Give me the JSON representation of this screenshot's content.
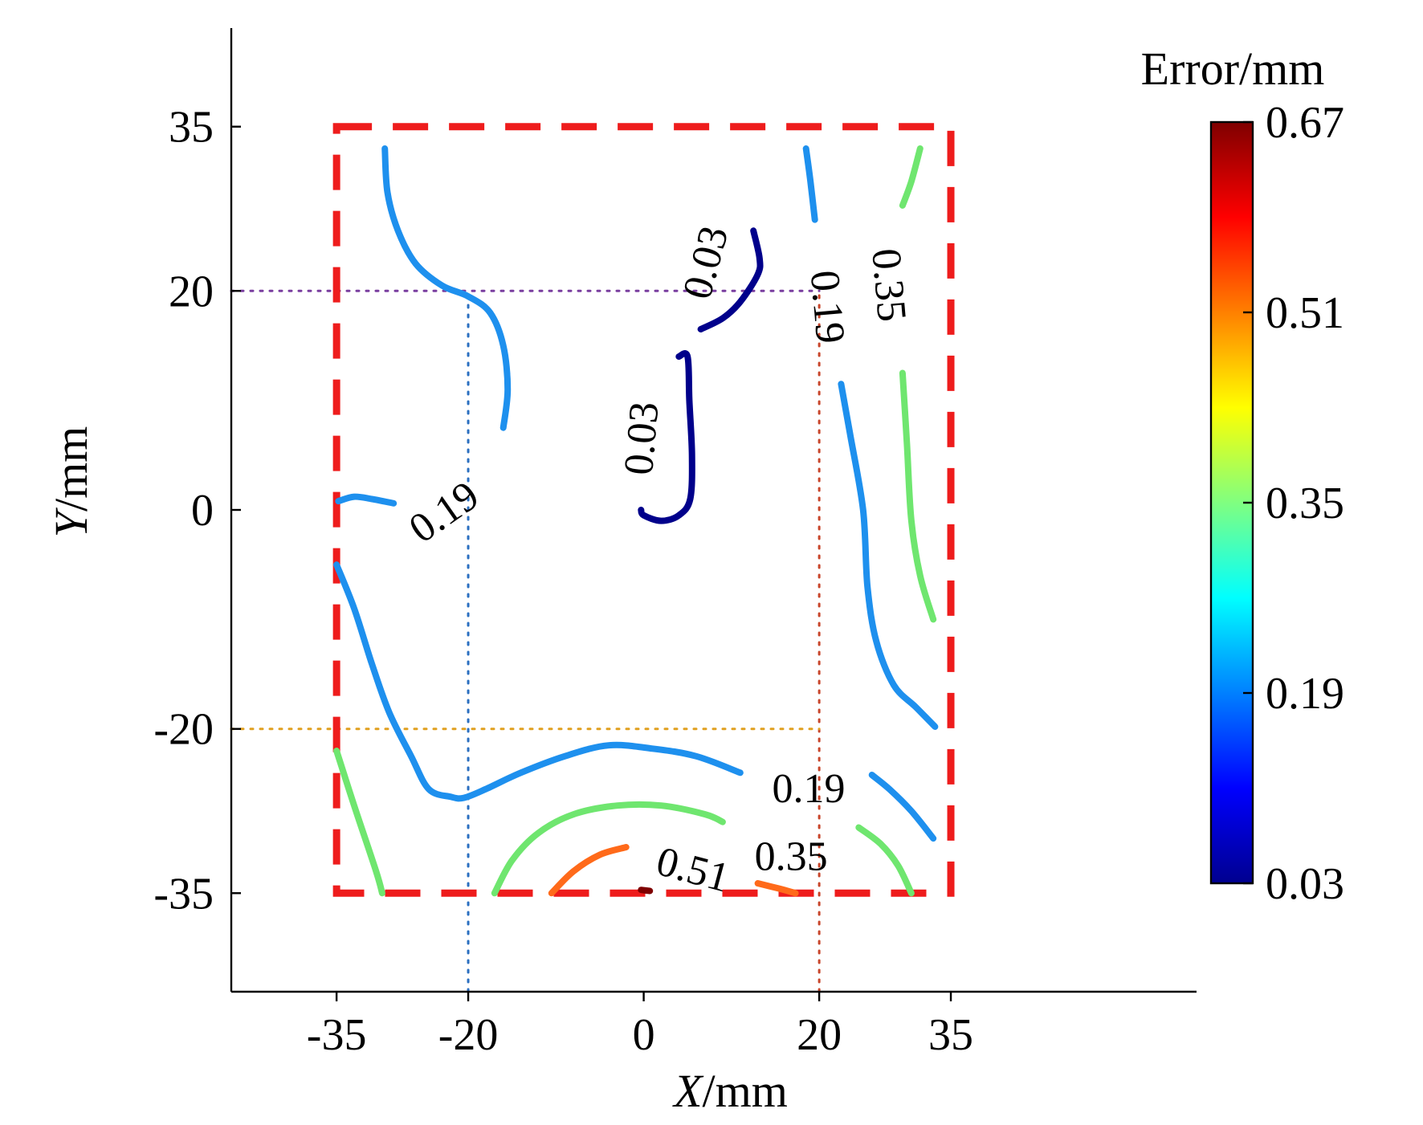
{
  "chart_data": {
    "type": "contour",
    "xlabel": {
      "italic": "X",
      "rest": "/mm"
    },
    "ylabel": {
      "italic": "Y",
      "rest": "/mm"
    },
    "xlim": [
      -47,
      63
    ],
    "ylim": [
      -44,
      44
    ],
    "xticks": [
      -35,
      -20,
      0,
      20,
      35
    ],
    "yticks": [
      35,
      20,
      0,
      -20,
      -35
    ],
    "colorbar": {
      "title": "Error/mm",
      "min": 0.03,
      "max": 0.67,
      "ticks": [
        "0.67",
        "0.51",
        "0.35",
        "0.19",
        "0.03"
      ],
      "colormap": [
        "#7f0000",
        "#ff0000",
        "#ff8000",
        "#ffff00",
        "#80ff80",
        "#00ffff",
        "#0080ff",
        "#0000ff",
        "#00008f"
      ]
    },
    "measurement_region": {
      "x": [
        -35,
        35
      ],
      "y": [
        -35,
        35
      ],
      "color": "#ee1c1c"
    },
    "guide_lines": [
      {
        "orientation": "vertical",
        "value": -20,
        "color": "#2a6fc0"
      },
      {
        "orientation": "vertical",
        "value": 20,
        "color": "#c8452a"
      },
      {
        "orientation": "horizontal",
        "value": 20,
        "color": "#7a3fa0"
      },
      {
        "orientation": "horizontal",
        "value": -20,
        "color": "#e0a020"
      }
    ],
    "contours": [
      {
        "level": 0.19,
        "color": "#1e90ee",
        "points": [
          [
            -29.5,
            33
          ],
          [
            -29.2,
            29
          ],
          [
            -28,
            25.5
          ],
          [
            -26,
            22.5
          ],
          [
            -23,
            20.5
          ],
          [
            -20,
            19.5
          ],
          [
            -17.5,
            18
          ],
          [
            -16,
            15
          ],
          [
            -15.5,
            11
          ],
          [
            -16,
            7.5
          ]
        ]
      },
      {
        "level": 0.19,
        "color": "#1e90ee",
        "points": [
          [
            -34.8,
            0.8
          ],
          [
            -33,
            1.2
          ],
          [
            -31,
            1
          ],
          [
            -28.5,
            0.6
          ]
        ]
      },
      {
        "level": 0.19,
        "color": "#1e90ee",
        "points": [
          [
            -35,
            -5
          ],
          [
            -33,
            -9
          ],
          [
            -31,
            -14
          ],
          [
            -29,
            -18.5
          ],
          [
            -26.5,
            -22.5
          ],
          [
            -24.5,
            -25.5
          ],
          [
            -22,
            -26.2
          ],
          [
            -20.5,
            -26.3
          ],
          [
            -18,
            -25.5
          ],
          [
            -14,
            -24
          ],
          [
            -9,
            -22.5
          ],
          [
            -4,
            -21.5
          ],
          [
            1,
            -21.8
          ],
          [
            6,
            -22.5
          ],
          [
            11,
            -24
          ]
        ]
      },
      {
        "level": 0.19,
        "color": "#1e90ee",
        "points": [
          [
            18.5,
            33
          ],
          [
            19,
            30
          ],
          [
            19.5,
            26.5
          ]
        ]
      },
      {
        "level": 0.19,
        "color": "#1e90ee",
        "points": [
          [
            22.5,
            11.5
          ],
          [
            23.5,
            7
          ],
          [
            25,
            0
          ],
          [
            25.5,
            -7
          ],
          [
            26.5,
            -12
          ],
          [
            28.5,
            -16
          ],
          [
            31,
            -18
          ],
          [
            33.2,
            -19.8
          ]
        ]
      },
      {
        "level": 0.19,
        "color": "#1e90ee",
        "points": [
          [
            26,
            -24.2
          ],
          [
            28,
            -25.5
          ],
          [
            30.5,
            -27.5
          ],
          [
            33,
            -30
          ]
        ]
      },
      {
        "level": 0.03,
        "color": "#00008b",
        "points": [
          [
            12.5,
            25.5
          ],
          [
            13.2,
            23
          ],
          [
            13,
            21.5
          ],
          [
            11,
            19
          ],
          [
            9,
            17.5
          ],
          [
            6.5,
            16.5
          ]
        ]
      },
      {
        "level": 0.03,
        "color": "#00008b",
        "points": [
          [
            4,
            14
          ],
          [
            5,
            14
          ],
          [
            5.2,
            10
          ],
          [
            5.5,
            5
          ],
          [
            5.3,
            1
          ],
          [
            4,
            -0.5
          ],
          [
            2,
            -1
          ],
          [
            0,
            -0.5
          ],
          [
            -0.3,
            0
          ]
        ]
      },
      {
        "level": 0.35,
        "color": "#6fe66f",
        "points": [
          [
            31.5,
            33
          ],
          [
            30.5,
            30
          ],
          [
            29.5,
            27.8
          ]
        ]
      },
      {
        "level": 0.35,
        "color": "#6fe66f",
        "points": [
          [
            29.5,
            12.5
          ],
          [
            30,
            6
          ],
          [
            30.5,
            -1
          ],
          [
            31.5,
            -6
          ],
          [
            33,
            -10
          ]
        ]
      },
      {
        "level": 0.35,
        "color": "#6fe66f",
        "points": [
          [
            -35,
            -22
          ],
          [
            -33,
            -27
          ],
          [
            -30.5,
            -33
          ],
          [
            -29.8,
            -35
          ]
        ]
      },
      {
        "level": 0.35,
        "color": "#6fe66f",
        "points": [
          [
            -17,
            -35
          ],
          [
            -15,
            -32
          ],
          [
            -12,
            -29.5
          ],
          [
            -8,
            -27.8
          ],
          [
            -3,
            -27
          ],
          [
            2,
            -27
          ],
          [
            7,
            -27.8
          ],
          [
            9,
            -28.5
          ]
        ]
      },
      {
        "level": 0.35,
        "color": "#6fe66f",
        "points": [
          [
            24.5,
            -29
          ],
          [
            27,
            -30.5
          ],
          [
            29,
            -32.5
          ],
          [
            30.5,
            -35
          ]
        ]
      },
      {
        "level": 0.51,
        "color": "#ff6a1a",
        "points": [
          [
            -10.5,
            -35
          ],
          [
            -8,
            -33
          ],
          [
            -5,
            -31.5
          ],
          [
            -2,
            -30.8
          ]
        ]
      },
      {
        "level": 0.51,
        "color": "#ff6a1a",
        "points": [
          [
            13,
            -34.1
          ],
          [
            15.5,
            -34.6
          ],
          [
            17.3,
            -35
          ]
        ]
      },
      {
        "level": 0.67,
        "color": "#7f0000",
        "points": [
          [
            -0.3,
            -34.7
          ],
          [
            0.7,
            -34.8
          ]
        ]
      }
    ],
    "contour_labels": [
      {
        "text": "0.19",
        "x": -22.5,
        "y": -0.5,
        "rotate": -35
      },
      {
        "text": "0.03",
        "x": 7.5,
        "y": 22.5,
        "rotate": -75
      },
      {
        "text": "0.03",
        "x": 0.2,
        "y": 6.5,
        "rotate": -85
      },
      {
        "text": "0.19",
        "x": 20.5,
        "y": 18.5,
        "rotate": 85
      },
      {
        "text": "0.35",
        "x": 27.5,
        "y": 20.5,
        "rotate": 85
      },
      {
        "text": "0.19",
        "x": 18.8,
        "y": -25.8,
        "rotate": 0
      },
      {
        "text": "0.35",
        "x": 16.8,
        "y": -32,
        "rotate": 0
      },
      {
        "text": "0.51",
        "x": 5.5,
        "y": -33.2,
        "rotate": 15
      }
    ]
  }
}
